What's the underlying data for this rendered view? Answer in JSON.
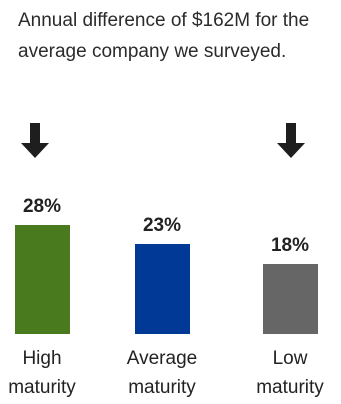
{
  "caption": "Annual difference of $162M for the average company we surveyed.",
  "icons": [
    "arrow-down-icon",
    "arrow-down-icon"
  ],
  "chart_data": {
    "type": "bar",
    "categories": [
      "High\nmaturity",
      "Average\nmaturity",
      "Low\nmaturity"
    ],
    "values": [
      28,
      23,
      18
    ],
    "value_labels": [
      "28%",
      "23%",
      "18%"
    ],
    "colors": [
      "#4a7a1e",
      "#003a96",
      "#666666"
    ],
    "ylim": [
      0,
      28
    ]
  }
}
